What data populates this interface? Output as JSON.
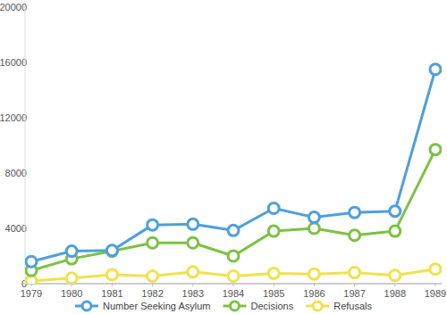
{
  "chart_data": {
    "type": "line",
    "categories": [
      "1979",
      "1980",
      "1981",
      "1982",
      "1983",
      "1984",
      "1985",
      "1986",
      "1987",
      "1988",
      "1989"
    ],
    "series": [
      {
        "name": "Number Seeking Asylum",
        "color": "#4f9fdc",
        "marker": "circle",
        "values": [
          1600,
          2350,
          2400,
          4250,
          4300,
          3850,
          5450,
          4800,
          5150,
          5250,
          15500
        ]
      },
      {
        "name": "Decisions",
        "color": "#7cc243",
        "marker": "circle",
        "values": [
          950,
          1800,
          2350,
          2950,
          2950,
          2000,
          3800,
          4000,
          3500,
          3800,
          9700
        ]
      },
      {
        "name": "Refusals",
        "color": "#f0e24a",
        "marker": "circle",
        "values": [
          200,
          400,
          650,
          550,
          850,
          550,
          750,
          700,
          800,
          600,
          1050
        ]
      }
    ],
    "ylim": [
      0,
      20000
    ],
    "yticks": [
      0,
      4000,
      8000,
      12000,
      16000,
      20000
    ],
    "grid": false,
    "legend": "bottom"
  }
}
